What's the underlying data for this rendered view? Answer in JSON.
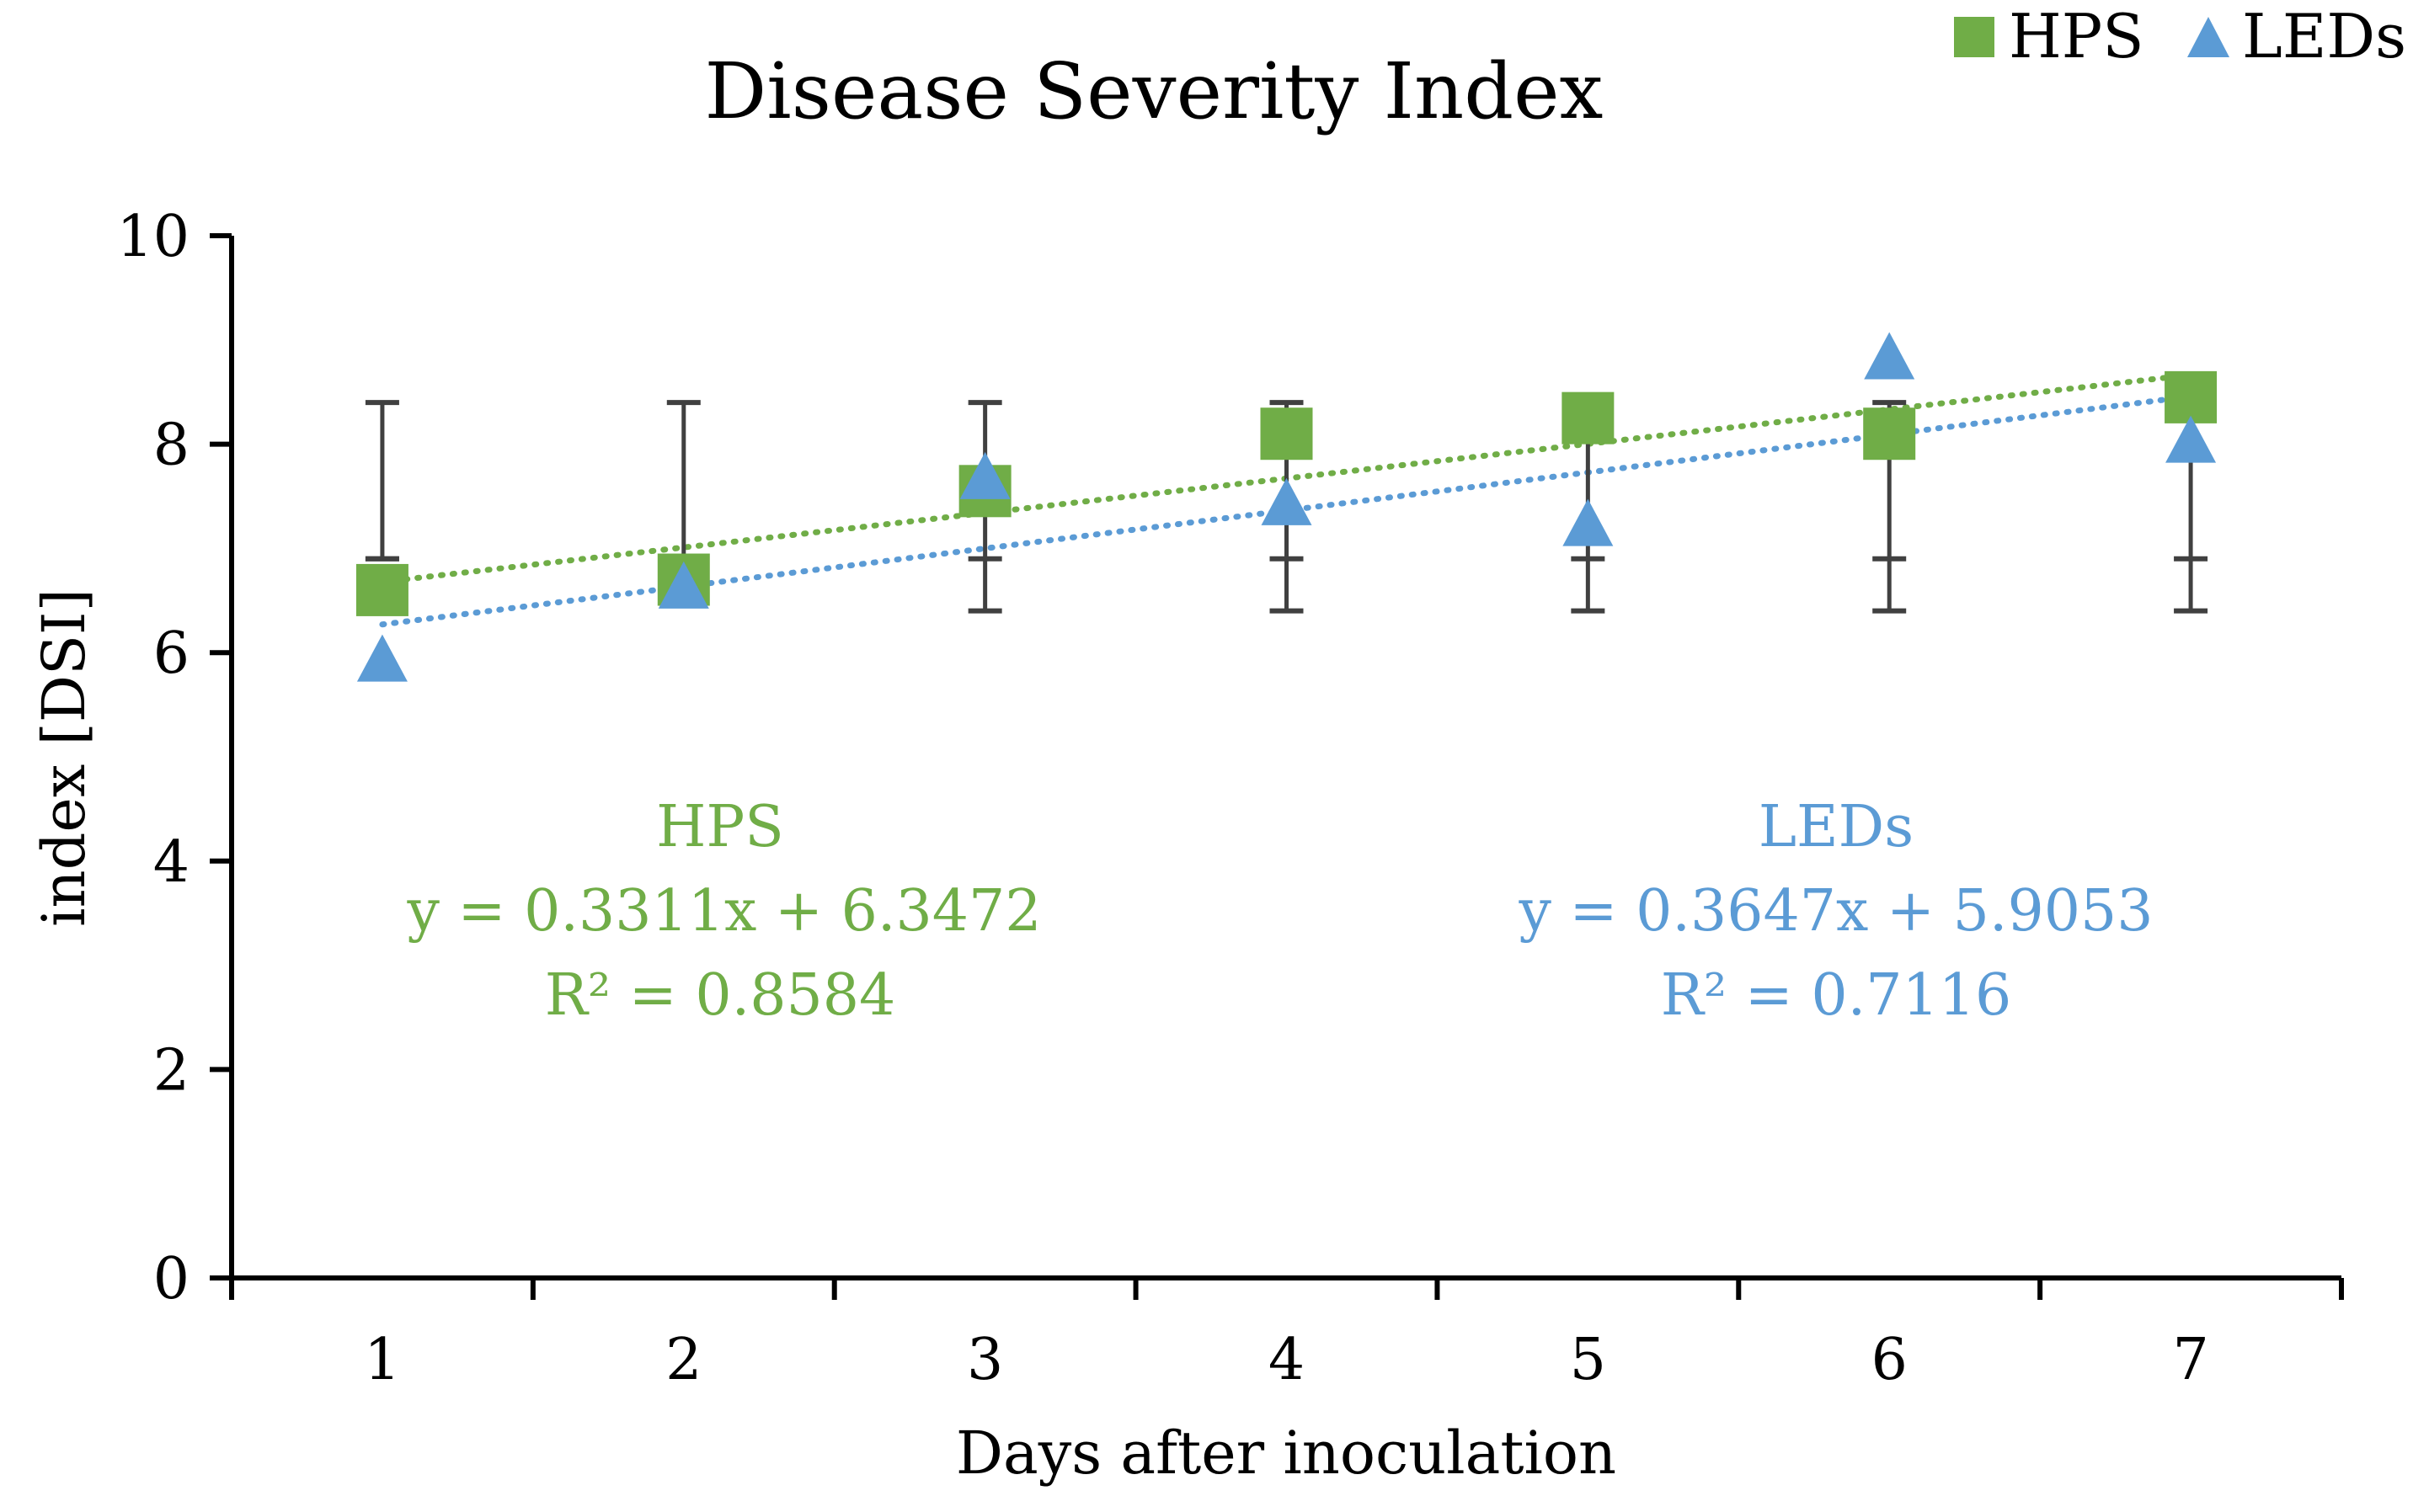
{
  "chart_data": {
    "type": "scatter",
    "title": "Disease Severity Index",
    "xlabel": "Days after inoculation",
    "ylabel": "index [DSI]",
    "x": [
      1,
      2,
      3,
      4,
      5,
      6,
      7
    ],
    "x_tick_labels": [
      "1",
      "2",
      "3",
      "4",
      "5",
      "6",
      "7"
    ],
    "xlim": [
      0.5,
      7.5
    ],
    "ylim": [
      0,
      10
    ],
    "y_ticks": [
      0,
      2,
      4,
      6,
      8,
      10
    ],
    "y_tick_labels": [
      "0",
      "2",
      "4",
      "6",
      "8",
      "10"
    ],
    "grid": false,
    "legend_position": "top-right",
    "error_bars": {
      "upper": [
        8.4,
        8.4,
        8.4,
        8.4,
        8.2,
        8.4,
        8.4
      ],
      "lower": [
        6.9,
        6.9,
        6.4,
        6.4,
        6.4,
        6.4,
        6.4
      ],
      "inner_caps": [
        6.9,
        6.9,
        6.9,
        6.9,
        6.9,
        6.9,
        6.9
      ]
    },
    "series": [
      {
        "name": "HPS",
        "marker": "square",
        "color": "#70ad47",
        "values": [
          6.6,
          6.7,
          7.55,
          8.1,
          8.25,
          8.1,
          8.45
        ],
        "trendline": {
          "slope": 0.3311,
          "intercept": 6.3472
        },
        "annotation": {
          "name": "HPS",
          "equation": "y = 0.3311x + 6.3472",
          "r2": "R² = 0.8584"
        }
      },
      {
        "name": "LEDs",
        "marker": "triangle",
        "color": "#5b9bd5",
        "values": [
          5.9,
          6.6,
          7.65,
          7.4,
          7.2,
          8.8,
          8.0
        ],
        "trendline": {
          "slope": 0.3647,
          "intercept": 5.9053
        },
        "annotation": {
          "name": "LEDs",
          "equation": "y = 0.3647x + 5.9053",
          "r2": "R² = 0.7116"
        }
      }
    ]
  }
}
